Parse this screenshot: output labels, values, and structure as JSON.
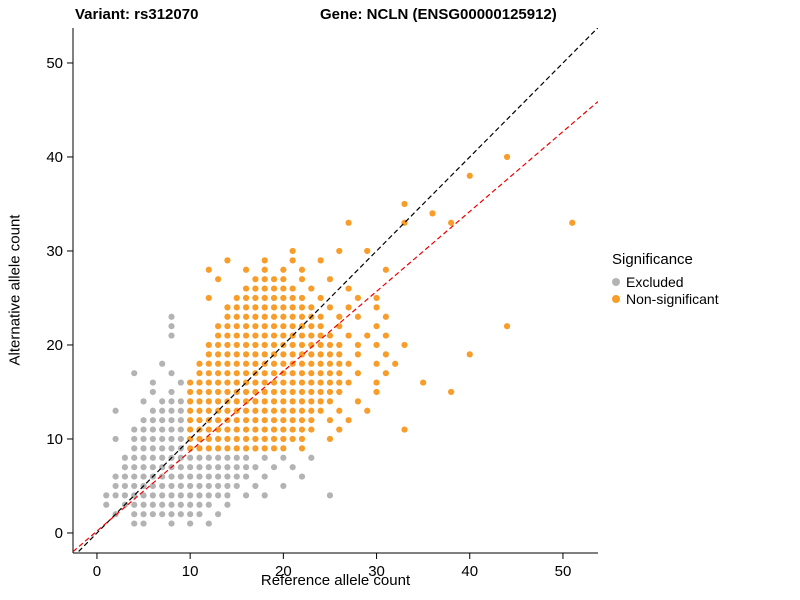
{
  "titles": {
    "variant": "Variant: rs312070",
    "gene": "Gene: NCLN (ENSG00000125912)"
  },
  "chart_data": {
    "type": "scatter",
    "xlabel": "Reference allele count",
    "ylabel": "Alternative allele count",
    "xlim": [
      -2.57,
      53.76
    ],
    "ylim": [
      -2.13,
      53.72
    ],
    "xticks": [
      0,
      10,
      20,
      30,
      40,
      50
    ],
    "yticks": [
      0,
      10,
      20,
      30,
      40,
      50
    ],
    "grid": false,
    "legend": {
      "title": "Significance",
      "position": "right",
      "entries": [
        {
          "label": "Excluded",
          "color": "#b3b3b3"
        },
        {
          "label": "Non-significant",
          "color": "#f89d29"
        }
      ]
    },
    "lines": [
      {
        "name": "identity",
        "slope": 1,
        "intercept": 0,
        "color": "#000000",
        "dash": "5,3"
      },
      {
        "name": "fit",
        "slope": 0.85,
        "intercept": 0.2,
        "color": "#ee0000",
        "dash": "5,3"
      }
    ],
    "series": [
      {
        "name": "Excluded",
        "color": "#b3b3b3",
        "rows": [
          {
            "y": 1,
            "x": [
              4,
              5,
              8,
              10,
              12
            ]
          },
          {
            "y": 2,
            "x": [
              2,
              4,
              5,
              6,
              7,
              8,
              9,
              10,
              11,
              13
            ]
          },
          {
            "y": 3,
            "x": [
              1,
              3,
              4,
              5,
              6,
              7,
              8,
              9,
              10,
              11,
              12,
              14
            ]
          },
          {
            "y": 4,
            "x": [
              1,
              2,
              3,
              4,
              5,
              6,
              7,
              8,
              9,
              10,
              11,
              12,
              13,
              14,
              16,
              18,
              25
            ]
          },
          {
            "y": 5,
            "x": [
              2,
              3,
              4,
              5,
              6,
              7,
              8,
              9,
              10,
              11,
              12,
              13,
              14,
              15,
              17,
              20
            ]
          },
          {
            "y": 6,
            "x": [
              2,
              3,
              4,
              5,
              6,
              7,
              8,
              9,
              10,
              11,
              12,
              13,
              14,
              15,
              16,
              18,
              22
            ]
          },
          {
            "y": 7,
            "x": [
              3,
              4,
              5,
              6,
              7,
              8,
              9,
              10,
              11,
              12,
              13,
              14,
              15,
              16,
              17,
              19,
              21
            ]
          },
          {
            "y": 8,
            "x": [
              3,
              4,
              5,
              6,
              7,
              8,
              9,
              10,
              11,
              12,
              13,
              14,
              15,
              16,
              18,
              20,
              23
            ]
          },
          {
            "y": 9,
            "x": [
              4,
              5,
              6,
              7,
              8,
              9
            ]
          },
          {
            "y": 10,
            "x": [
              2,
              4,
              5,
              6,
              7,
              8,
              9
            ]
          },
          {
            "y": 11,
            "x": [
              4,
              5,
              6,
              7,
              8,
              9
            ]
          },
          {
            "y": 12,
            "x": [
              5,
              6,
              7,
              8,
              9
            ]
          },
          {
            "y": 13,
            "x": [
              2,
              6,
              7,
              8,
              9
            ]
          },
          {
            "y": 14,
            "x": [
              5,
              7,
              8,
              9
            ]
          },
          {
            "y": 15,
            "x": [
              6,
              8
            ]
          },
          {
            "y": 16,
            "x": [
              6,
              9
            ]
          },
          {
            "y": 17,
            "x": [
              4,
              8
            ]
          },
          {
            "y": 18,
            "x": [
              7
            ]
          },
          {
            "y": 21,
            "x": [
              8
            ]
          },
          {
            "y": 22,
            "x": [
              8
            ]
          },
          {
            "y": 23,
            "x": [
              8
            ]
          }
        ]
      },
      {
        "name": "Non-significant",
        "color": "#f89d29",
        "rows": [
          {
            "y": 9,
            "x": [
              10,
              11,
              12,
              13,
              14,
              15,
              16,
              17,
              18,
              19,
              20,
              22
            ]
          },
          {
            "y": 10,
            "x": [
              10,
              11,
              12,
              13,
              14,
              15,
              16,
              17,
              18,
              19,
              20,
              21,
              22,
              25
            ]
          },
          {
            "y": 11,
            "x": [
              10,
              11,
              12,
              13,
              14,
              15,
              16,
              17,
              18,
              19,
              20,
              21,
              22,
              23,
              26,
              33
            ]
          },
          {
            "y": 12,
            "x": [
              10,
              11,
              12,
              13,
              14,
              15,
              16,
              17,
              18,
              19,
              20,
              21,
              22,
              23,
              25,
              27
            ]
          },
          {
            "y": 13,
            "x": [
              10,
              11,
              12,
              13,
              14,
              15,
              16,
              17,
              18,
              19,
              20,
              21,
              22,
              23,
              24,
              26,
              29
            ]
          },
          {
            "y": 14,
            "x": [
              10,
              11,
              12,
              13,
              14,
              15,
              16,
              17,
              18,
              19,
              20,
              21,
              22,
              23,
              24,
              25,
              28
            ]
          },
          {
            "y": 15,
            "x": [
              10,
              11,
              12,
              13,
              14,
              15,
              16,
              17,
              18,
              19,
              20,
              21,
              22,
              23,
              24,
              25,
              26,
              30,
              38
            ]
          },
          {
            "y": 16,
            "x": [
              10,
              11,
              12,
              13,
              14,
              15,
              16,
              17,
              18,
              19,
              20,
              21,
              22,
              23,
              24,
              25,
              26,
              27,
              30,
              35
            ]
          },
          {
            "y": 17,
            "x": [
              11,
              12,
              13,
              14,
              15,
              16,
              17,
              18,
              19,
              20,
              21,
              22,
              23,
              24,
              25,
              26,
              28,
              31
            ]
          },
          {
            "y": 18,
            "x": [
              11,
              12,
              13,
              14,
              15,
              16,
              17,
              18,
              19,
              20,
              21,
              22,
              23,
              24,
              25,
              26,
              27,
              30,
              32
            ]
          },
          {
            "y": 19,
            "x": [
              12,
              13,
              14,
              15,
              16,
              17,
              18,
              19,
              20,
              21,
              22,
              23,
              24,
              25,
              26,
              28,
              31,
              40
            ]
          },
          {
            "y": 20,
            "x": [
              12,
              13,
              14,
              15,
              16,
              17,
              18,
              19,
              20,
              21,
              22,
              23,
              24,
              25,
              26,
              28,
              30,
              33
            ]
          },
          {
            "y": 21,
            "x": [
              13,
              14,
              15,
              16,
              17,
              18,
              19,
              20,
              21,
              22,
              23,
              24,
              25,
              27,
              29,
              31
            ]
          },
          {
            "y": 22,
            "x": [
              13,
              14,
              15,
              16,
              17,
              18,
              19,
              20,
              21,
              22,
              23,
              24,
              26,
              30,
              44
            ]
          },
          {
            "y": 23,
            "x": [
              14,
              15,
              16,
              17,
              18,
              19,
              20,
              21,
              22,
              23,
              24,
              26,
              28,
              31
            ]
          },
          {
            "y": 24,
            "x": [
              14,
              15,
              16,
              17,
              18,
              19,
              20,
              21,
              22,
              23,
              25,
              27,
              30
            ]
          },
          {
            "y": 25,
            "x": [
              12,
              15,
              16,
              17,
              18,
              19,
              20,
              21,
              22,
              24,
              28,
              30
            ]
          },
          {
            "y": 26,
            "x": [
              16,
              17,
              18,
              19,
              20,
              21,
              23,
              27
            ]
          },
          {
            "y": 27,
            "x": [
              13,
              17,
              18,
              19,
              20,
              22,
              25
            ]
          },
          {
            "y": 28,
            "x": [
              12,
              16,
              18,
              20,
              22,
              31
            ]
          },
          {
            "y": 29,
            "x": [
              14,
              18,
              21,
              24
            ]
          },
          {
            "y": 30,
            "x": [
              21,
              26,
              29
            ]
          },
          {
            "y": 33,
            "x": [
              27,
              33,
              38,
              51
            ]
          },
          {
            "y": 34,
            "x": [
              36
            ]
          },
          {
            "y": 35,
            "x": [
              33
            ]
          },
          {
            "y": 38,
            "x": [
              40
            ]
          },
          {
            "y": 40,
            "x": [
              44
            ]
          }
        ]
      }
    ]
  }
}
